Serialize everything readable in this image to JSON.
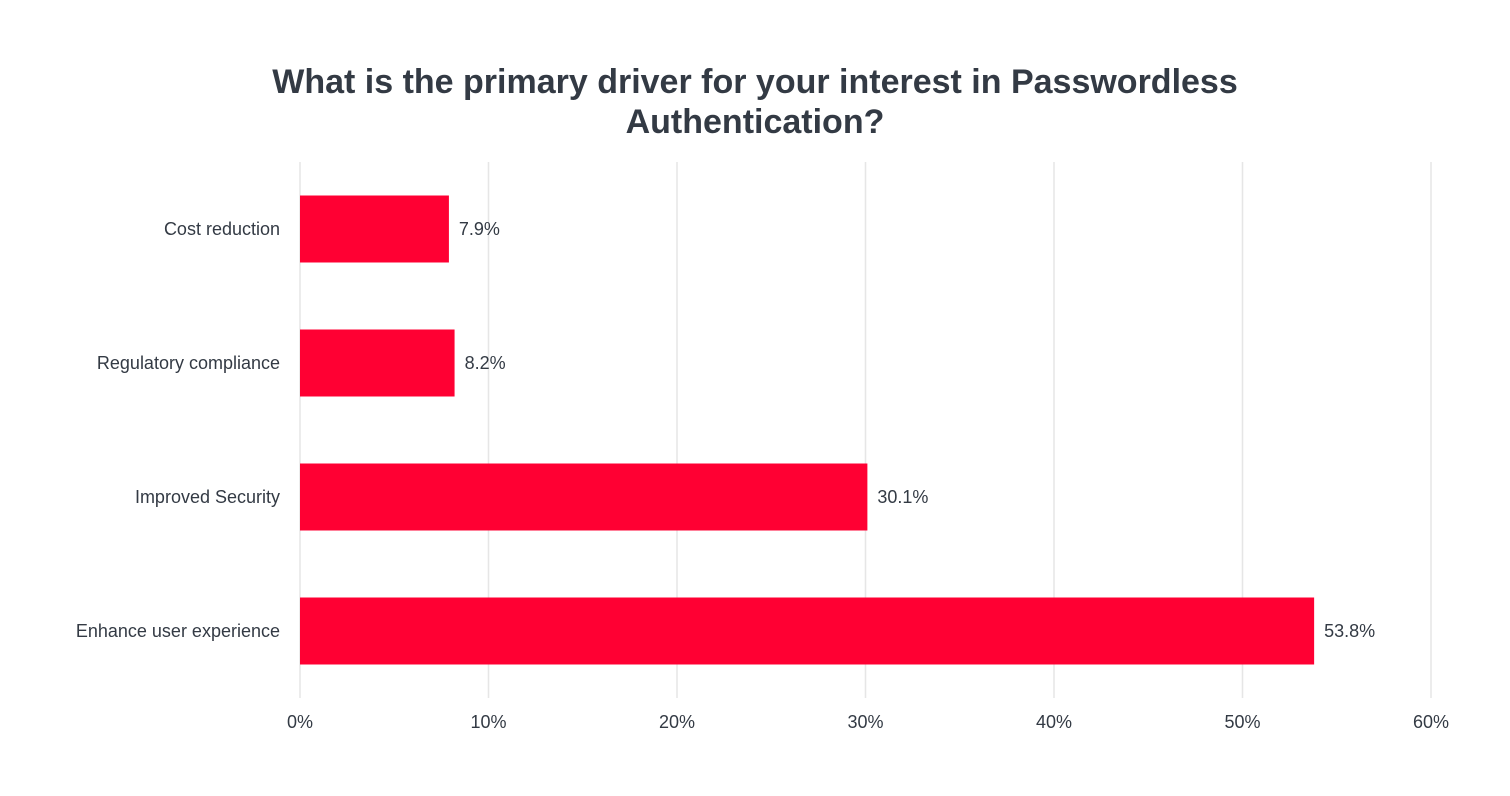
{
  "chart_data": {
    "type": "bar",
    "orientation": "horizontal",
    "title_lines": [
      "What is the primary driver for your interest in Passwordless",
      "Authentication?"
    ],
    "categories": [
      "Cost reduction",
      "Regulatory compliance",
      "Improved Security",
      "Enhance user experience"
    ],
    "values": [
      7.9,
      8.2,
      30.1,
      53.8
    ],
    "value_labels": [
      "7.9%",
      "8.2%",
      "30.1%",
      "53.8%"
    ],
    "xlim": [
      0,
      60
    ],
    "x_ticks": [
      0,
      10,
      20,
      30,
      40,
      50,
      60
    ],
    "x_tick_labels": [
      "0%",
      "10%",
      "20%",
      "30%",
      "40%",
      "50%",
      "60%"
    ],
    "grid": true,
    "bar_color": "#ff0033",
    "grid_color": "#e6e6e6",
    "text_color": "#333a44"
  }
}
